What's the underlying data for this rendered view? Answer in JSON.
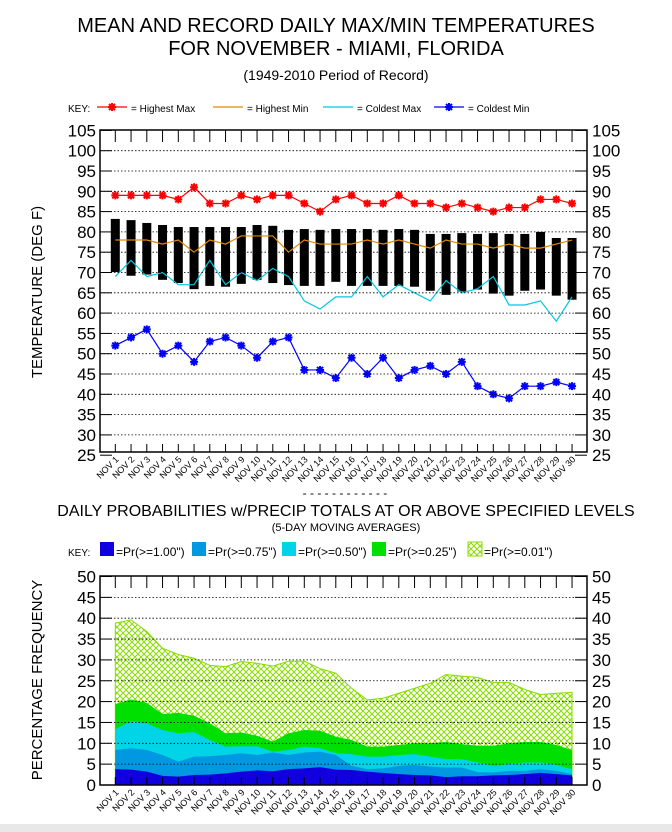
{
  "chart_data": [
    {
      "type": "line",
      "title": "MEAN AND RECORD DAILY MAX/MIN TEMPERATURES",
      "title2": "FOR NOVEMBER - MIAMI, FLORIDA",
      "subtitle": "(1949-2010 Period of Record)",
      "ylabel": "TEMPERATURE (DEG F)",
      "ylim": [
        25,
        105
      ],
      "yticks": [
        "105",
        "100",
        "95",
        "90",
        "85",
        "80",
        "75",
        "70",
        "65",
        "60",
        "55",
        "50",
        "45",
        "40",
        "35",
        "30",
        "25"
      ],
      "grid": true,
      "legend_key": "KEY:",
      "legend_placement": "top",
      "categories": [
        "NOV 1",
        "NOV 2",
        "NOV 3",
        "NOV 4",
        "NOV 5",
        "NOV 6",
        "NOV 7",
        "NOV 8",
        "NOV 9",
        "NOV 10",
        "NOV 11",
        "NOV 12",
        "NOV 13",
        "NOV 14",
        "NOV 15",
        "NOV 16",
        "NOV 17",
        "NOV 18",
        "NOV 19",
        "NOV 20",
        "NOV 21",
        "NOV 22",
        "NOV 23",
        "NOV 24",
        "NOV 25",
        "NOV 26",
        "NOV 27",
        "NOV 28",
        "NOV 29",
        "NOV 30"
      ],
      "series": [
        {
          "name": "= Highest Max",
          "color": "#ff0000",
          "marker": "star",
          "values": [
            89,
            89,
            89,
            89,
            88,
            91,
            87,
            87,
            89,
            88,
            89,
            89,
            87,
            85,
            88,
            89,
            87,
            87,
            89,
            87,
            87,
            86,
            87,
            86,
            85,
            86,
            86,
            88,
            88,
            87
          ]
        },
        {
          "name": "= Highest Min",
          "color": "#e08a00",
          "marker": "none",
          "values": [
            78,
            78,
            78,
            77,
            78,
            75,
            78,
            77,
            79,
            79,
            79,
            75,
            78,
            77,
            77,
            77,
            78,
            77,
            78,
            77,
            76,
            78,
            77,
            77,
            76,
            77,
            76,
            76,
            77,
            78
          ]
        },
        {
          "name": "= Coldest Max",
          "color": "#00c8e0",
          "marker": "none",
          "values": [
            69,
            73,
            69,
            70,
            67,
            67,
            73,
            67,
            70,
            68,
            71,
            69,
            63,
            61,
            64,
            64,
            69,
            64,
            67,
            65,
            63,
            68,
            65,
            66,
            69,
            62,
            62,
            63,
            58,
            64
          ]
        },
        {
          "name": "= Coldest Min",
          "color": "#0000ff",
          "marker": "star",
          "values": [
            52,
            54,
            56,
            50,
            52,
            48,
            53,
            54,
            52,
            49,
            53,
            54,
            46,
            46,
            44,
            49,
            45,
            49,
            44,
            46,
            47,
            45,
            48,
            42,
            40,
            39,
            42,
            42,
            43,
            42
          ]
        }
      ],
      "normal_bars": {
        "color": "#000000",
        "max": [
          83.2,
          82.9,
          82.2,
          81.7,
          81.2,
          81.2,
          81.2,
          81.2,
          81.2,
          81.7,
          81.5,
          80.5,
          80.7,
          80.5,
          80.7,
          80.7,
          80.7,
          80.5,
          80.7,
          80.5,
          79.5,
          79.5,
          79.7,
          79.5,
          79.7,
          79.5,
          79.5,
          80,
          78.5,
          78.5
        ],
        "min": [
          70.1,
          69.2,
          69.5,
          68.2,
          67.4,
          65.9,
          66.7,
          66.5,
          67.2,
          68.2,
          67.4,
          66.9,
          66.7,
          66.7,
          67.7,
          66.7,
          66.7,
          66.7,
          66.7,
          66.5,
          65.5,
          64.5,
          65.3,
          65.8,
          64.8,
          64.3,
          65.5,
          65.8,
          64.3,
          63.3
        ]
      }
    },
    {
      "type": "area",
      "title": "DAILY PROBABILITIES w/PRECIP TOTALS AT OR ABOVE SPECIFIED LEVELS",
      "subtitle": "(5-DAY MOVING AVERAGES)",
      "ylabel": "PERCENTAGE FREQUENCY",
      "ylim": [
        0,
        50
      ],
      "yticks": [
        "50",
        "45",
        "40",
        "35",
        "30",
        "25",
        "20",
        "15",
        "10",
        "5",
        "0"
      ],
      "grid": true,
      "legend_key": "KEY:",
      "legend_placement": "top",
      "categories": [
        "NOV 1",
        "NOV 2",
        "NOV 3",
        "NOV 4",
        "NOV 5",
        "NOV 6",
        "NOV 7",
        "NOV 8",
        "NOV 9",
        "NOV 10",
        "NOV 11",
        "NOV 12",
        "NOV 13",
        "NOV 14",
        "NOV 15",
        "NOV 16",
        "NOV 17",
        "NOV 18",
        "NOV 19",
        "NOV 20",
        "NOV 21",
        "NOV 22",
        "NOV 23",
        "NOV 24",
        "NOV 25",
        "NOV 26",
        "NOV 27",
        "NOV 28",
        "NOV 29",
        "NOV 30"
      ],
      "series": [
        {
          "name": "=Pr(>=0.01\")",
          "color": "#88dd00",
          "fill": "hatch",
          "values": [
            38.8,
            39.6,
            36.8,
            32.8,
            31.3,
            30.4,
            28.7,
            28.4,
            29.6,
            29.2,
            28.5,
            29.7,
            29.7,
            27.9,
            26.8,
            23.2,
            20.4,
            20.8,
            22,
            23.2,
            24.4,
            26.5,
            26.1,
            25.8,
            24.6,
            24.6,
            22.9,
            21.7,
            22,
            22.2
          ]
        },
        {
          "name": "=Pr(>=0.25\")",
          "color": "#00e000",
          "fill": "solid",
          "values": [
            19.4,
            20.5,
            19.7,
            17,
            17.3,
            16.6,
            14.8,
            12.4,
            12.6,
            11.8,
            10.4,
            12.4,
            13.2,
            13,
            11.6,
            10.8,
            9.2,
            9.2,
            9.6,
            10,
            10,
            10.3,
            9.8,
            9.4,
            9.4,
            10,
            10.3,
            10.3,
            9.6,
            8.4
          ]
        },
        {
          "name": "=Pr(>=0.50\")",
          "color": "#00d4e6",
          "fill": "solid",
          "values": [
            13.4,
            15.3,
            14.8,
            13.2,
            12.4,
            12.7,
            10.8,
            9.2,
            9.3,
            9.3,
            8,
            8.4,
            9.2,
            8.8,
            7.6,
            7.4,
            6.8,
            6.8,
            7.2,
            7.4,
            6.8,
            6.2,
            6.2,
            5.4,
            4.6,
            5,
            5.4,
            5.4,
            4.8,
            3.8
          ]
        },
        {
          "name": "=Pr(>=0.75\")",
          "color": "#0098e0",
          "fill": "solid",
          "values": [
            8.4,
            8.8,
            8.4,
            7.2,
            5.6,
            6.8,
            6.9,
            7.2,
            7.6,
            7.2,
            7.8,
            7.2,
            7.8,
            8,
            7.2,
            4.6,
            3.8,
            4,
            4.6,
            4.8,
            4.4,
            4.2,
            4.2,
            3.1,
            3,
            3.4,
            3.4,
            3.8,
            3.4,
            2.6
          ]
        },
        {
          "name": "=Pr(>=1.00\")",
          "color": "#1000e0",
          "fill": "solid",
          "values": [
            3.8,
            3.7,
            3.2,
            2.2,
            2,
            2.4,
            2.5,
            2.8,
            3.2,
            3.5,
            3.3,
            3.8,
            4,
            4.3,
            3.7,
            3.6,
            3.2,
            2.9,
            2.6,
            2.4,
            2.3,
            1.9,
            2.1,
            2.1,
            2.3,
            2.4,
            2.6,
            2.9,
            2.6,
            2.3
          ]
        }
      ]
    }
  ],
  "separator": "- - - - - - - - - - - -"
}
